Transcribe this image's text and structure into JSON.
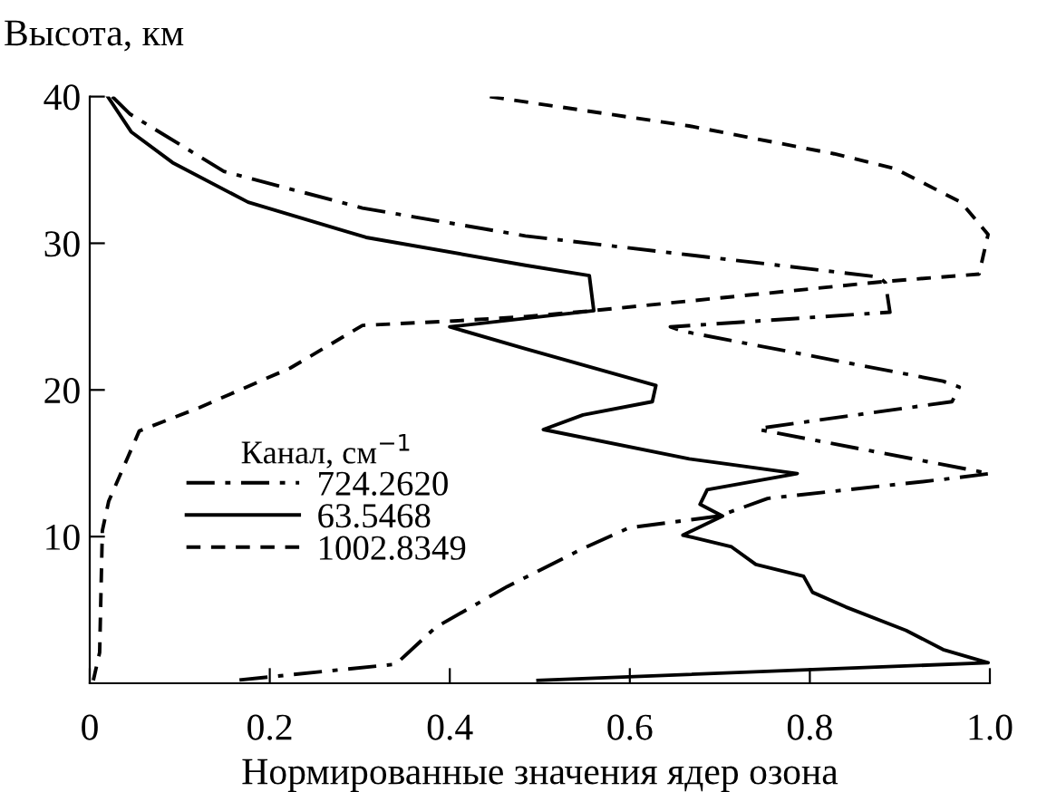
{
  "chart_data": {
    "type": "line",
    "ylabel": "Высота, км",
    "xlabel": "Нормированные значения ядер озона",
    "legend_title": "Канал, см$^{−1}$",
    "legend": "center left",
    "grid": false,
    "marker": "none",
    "xlim": [
      0,
      1.0
    ],
    "xticks": [
      0,
      0.2,
      0.4,
      0.6,
      0.8,
      {
        "value": 1.0,
        "label": "1.0"
      }
    ],
    "ylim": [
      0,
      40
    ],
    "yticks": [
      10,
      20,
      30,
      40
    ],
    "series": [
      {
        "name": "724.2620",
        "color": "#000000",
        "line_style": "dashdot",
        "x": [
          0.025,
          0.045,
          0.149,
          0.303,
          0.484,
          0.877,
          0.884,
          0.889,
          0.645,
          0.659,
          0.948,
          0.966,
          0.958,
          0.746,
          0.743,
          1.0,
          0.948,
          0.753,
          0.699,
          0.599,
          0.545,
          0.464,
          0.384,
          0.34,
          0.162
        ],
        "values": [
          40,
          38.8,
          34.9,
          32.4,
          30.5,
          27.7,
          27.3,
          25.3,
          24.3,
          24.0,
          20.6,
          20.2,
          19.2,
          17.4,
          17.3,
          14.3,
          13.9,
          12.6,
          11.4,
          10.6,
          9.1,
          6.6,
          3.8,
          1.3,
          0.2
        ]
      },
      {
        "name": "63.5468",
        "color": "#000000",
        "line_style": "solid",
        "x": [
          0.02,
          0.046,
          0.092,
          0.176,
          0.307,
          0.484,
          0.555,
          0.56,
          0.4,
          0.484,
          0.629,
          0.625,
          0.548,
          0.504,
          0.666,
          0.786,
          0.686,
          0.678,
          0.703,
          0.659,
          0.713,
          0.74,
          0.793,
          0.803,
          0.84,
          0.907,
          0.948,
          0.998,
          0.498
        ],
        "values": [
          40,
          37.6,
          35.5,
          32.8,
          30.4,
          28.5,
          27.8,
          25.4,
          24.3,
          22.8,
          20.3,
          19.2,
          18.3,
          17.3,
          15.3,
          14.3,
          13.2,
          12.2,
          11.4,
          10.1,
          9.3,
          8.1,
          7.3,
          6.2,
          5.2,
          3.6,
          2.3,
          1.4,
          0.2
        ]
      },
      {
        "name": "1002.8349",
        "color": "#000000",
        "line_style": "dashed",
        "x": [
          0.004,
          0.011,
          0.014,
          0.021,
          0.055,
          0.122,
          0.223,
          0.303,
          0.404,
          0.484,
          0.558,
          0.884,
          0.988,
          0.998,
          0.968,
          0.894,
          0.827,
          0.666,
          0.444
        ],
        "values": [
          0.2,
          2.1,
          10.4,
          12.4,
          17.2,
          18.8,
          21.5,
          24.4,
          24.7,
          25.0,
          25.4,
          27.4,
          27.9,
          30.6,
          32.8,
          35.1,
          36.1,
          38.0,
          40
        ]
      }
    ]
  }
}
